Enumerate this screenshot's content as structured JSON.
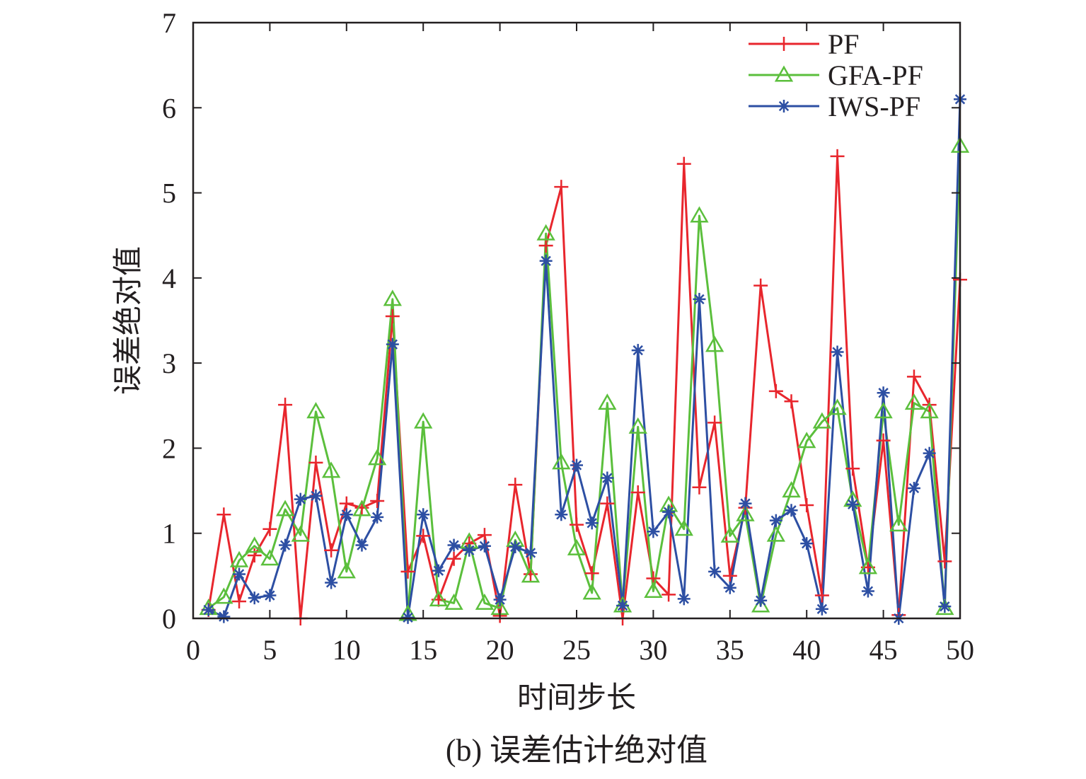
{
  "chart_data": {
    "type": "line",
    "caption": "(b) 误差估计绝对值",
    "xlabel": "时间步长",
    "ylabel": "误差绝对值",
    "xlim": [
      0,
      50
    ],
    "ylim": [
      0,
      7
    ],
    "xticks": [
      0,
      5,
      10,
      15,
      20,
      25,
      30,
      35,
      40,
      45,
      50
    ],
    "yticks": [
      0,
      1,
      2,
      3,
      4,
      5,
      6,
      7
    ],
    "grid": false,
    "legend_position": "top-right",
    "x": [
      1,
      2,
      3,
      4,
      5,
      6,
      7,
      8,
      9,
      10,
      11,
      12,
      13,
      14,
      15,
      16,
      17,
      18,
      19,
      20,
      21,
      22,
      23,
      24,
      25,
      26,
      27,
      28,
      29,
      30,
      31,
      32,
      33,
      34,
      35,
      36,
      37,
      38,
      39,
      40,
      41,
      42,
      43,
      44,
      45,
      46,
      47,
      48,
      49,
      50
    ],
    "series": [
      {
        "name": "PF",
        "color": "#e8262d",
        "marker": "plus",
        "values": [
          0.1,
          1.22,
          0.2,
          0.74,
          1.05,
          2.51,
          0.0,
          1.83,
          0.8,
          1.35,
          1.3,
          1.38,
          3.55,
          0.55,
          0.97,
          0.22,
          0.7,
          0.88,
          0.98,
          0.03,
          1.57,
          0.52,
          4.38,
          5.07,
          1.1,
          0.53,
          1.35,
          0.0,
          1.48,
          0.47,
          0.28,
          5.34,
          1.54,
          2.3,
          0.5,
          1.3,
          3.91,
          2.67,
          2.55,
          1.33,
          0.27,
          5.43,
          1.76,
          0.6,
          2.09,
          0.04,
          2.84,
          2.51,
          0.67,
          3.98
        ]
      },
      {
        "name": "GFA-PF",
        "color": "#5bbf3c",
        "marker": "triangle",
        "values": [
          0.12,
          0.25,
          0.68,
          0.85,
          0.7,
          1.28,
          0.98,
          2.43,
          1.73,
          0.55,
          1.28,
          1.88,
          3.75,
          0.05,
          2.31,
          0.22,
          0.18,
          0.9,
          0.18,
          0.12,
          0.92,
          0.5,
          4.52,
          1.83,
          0.82,
          0.3,
          2.53,
          0.15,
          2.25,
          0.32,
          1.33,
          1.05,
          4.73,
          3.21,
          0.97,
          1.22,
          0.15,
          0.98,
          1.5,
          2.08,
          2.31,
          2.47,
          1.39,
          0.6,
          2.43,
          1.1,
          2.53,
          2.43,
          0.12,
          5.55
        ]
      },
      {
        "name": "IWS-PF",
        "color": "#2d4fa3",
        "marker": "star",
        "values": [
          0.1,
          0.02,
          0.52,
          0.24,
          0.27,
          0.86,
          1.4,
          1.44,
          0.42,
          1.22,
          0.86,
          1.19,
          3.22,
          0.01,
          1.22,
          0.56,
          0.86,
          0.8,
          0.85,
          0.22,
          0.84,
          0.77,
          4.2,
          1.22,
          1.8,
          1.12,
          1.65,
          0.15,
          3.15,
          1.02,
          1.25,
          0.23,
          3.75,
          0.55,
          0.36,
          1.35,
          0.21,
          1.15,
          1.27,
          0.88,
          0.11,
          3.13,
          1.34,
          0.32,
          2.65,
          0.0,
          1.53,
          1.94,
          0.14,
          6.1
        ]
      }
    ]
  }
}
